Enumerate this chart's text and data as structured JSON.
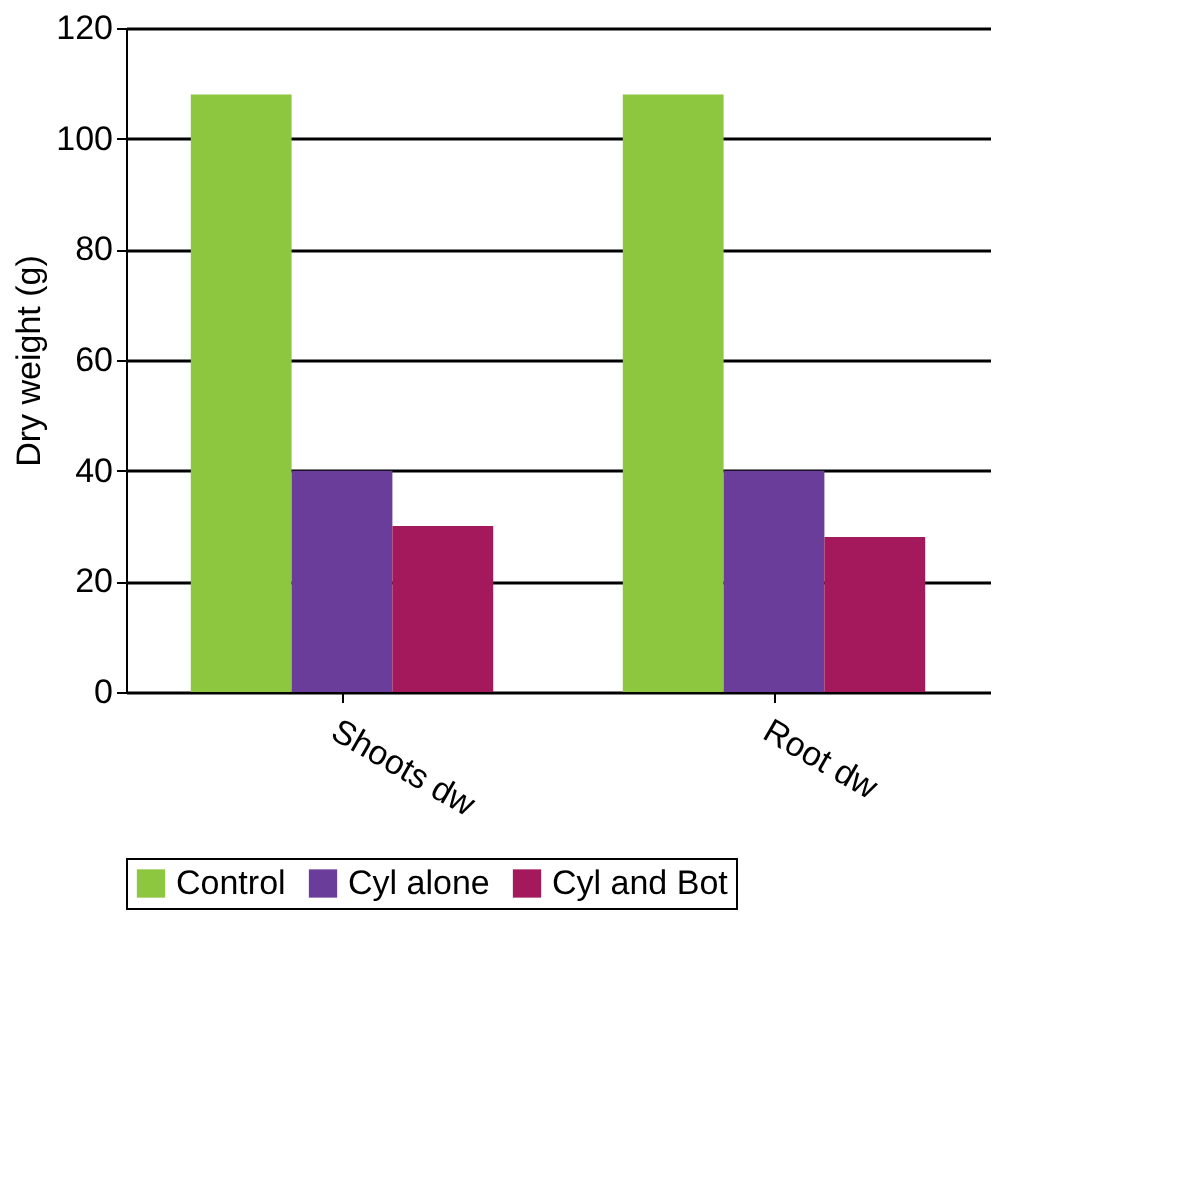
{
  "chart_data": {
    "type": "bar",
    "ylabel": "Dry weight (g)",
    "categories": [
      "Shoots dw",
      "Root dw"
    ],
    "series": [
      {
        "name": "Control",
        "color": "#8dc63f",
        "values": [
          108,
          108
        ]
      },
      {
        "name": "Cyl alone",
        "color": "#6a3d9a",
        "values": [
          40,
          40
        ]
      },
      {
        "name": "Cyl and Bot",
        "color": "#a3195b",
        "values": [
          30,
          28
        ]
      }
    ],
    "ylim": [
      0,
      120
    ],
    "yticks": [
      0,
      20,
      40,
      60,
      80,
      100,
      120
    ],
    "grid": "y",
    "legend": "bottom"
  }
}
